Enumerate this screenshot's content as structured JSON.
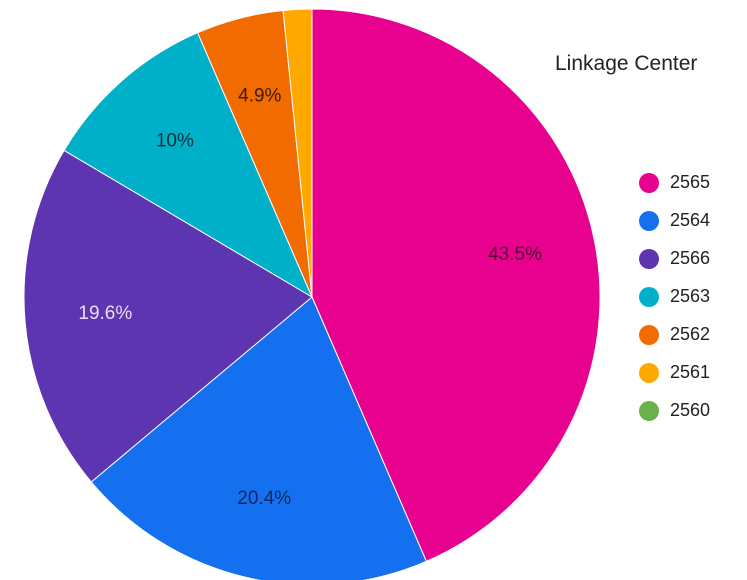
{
  "chart_data": {
    "type": "pie",
    "legend_title": "Linkage Center",
    "legend_position": "right",
    "slices": [
      {
        "label": "2565",
        "value": 43.5,
        "display": "43.5%",
        "color": "#e8008f",
        "label_color": "#5a0037"
      },
      {
        "label": "2564",
        "value": 20.4,
        "display": "20.4%",
        "color": "#1570ef",
        "label_color": "#0a2a66"
      },
      {
        "label": "2566",
        "value": 19.6,
        "display": "19.6%",
        "color": "#5e35b1",
        "label_color": "#e6defa"
      },
      {
        "label": "2563",
        "value": 10.0,
        "display": "10%",
        "color": "#00b0c8",
        "label_color": "#06343b"
      },
      {
        "label": "2562",
        "value": 4.9,
        "display": "4.9%",
        "color": "#f26b00",
        "label_color": "#3e1a00"
      },
      {
        "label": "2561",
        "value": 1.6,
        "display": "",
        "color": "#ffa800",
        "label_color": "#3e2a00"
      },
      {
        "label": "2560",
        "value": 0.0,
        "display": "",
        "color": "#6ab04c",
        "label_color": "#1e3a12"
      }
    ]
  }
}
